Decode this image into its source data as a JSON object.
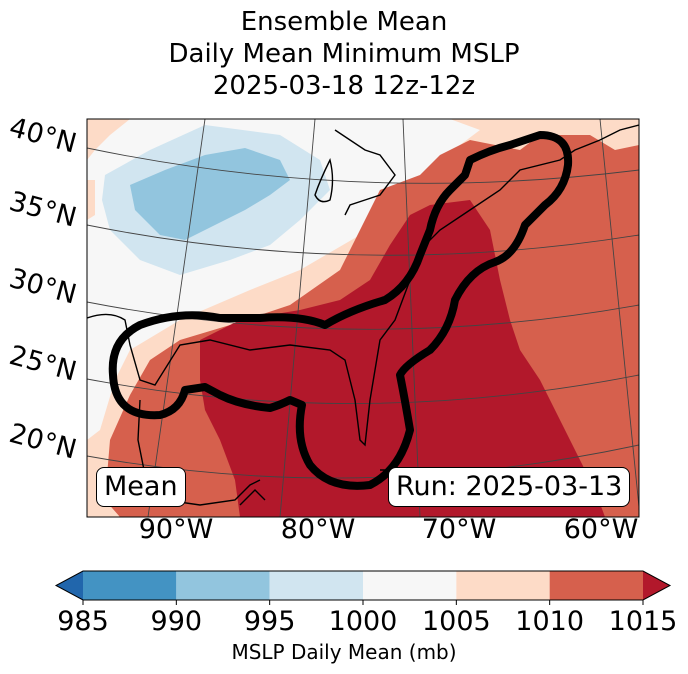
{
  "title": {
    "line1": "Ensemble Mean",
    "line2": "Daily Mean Minimum MSLP",
    "line3": "2025-03-18 12z-12z"
  },
  "map": {
    "lat_labels": [
      "40°N",
      "35°N",
      "30°N",
      "25°N",
      "20°N"
    ],
    "lon_labels": [
      "90°W",
      "80°W",
      "70°W",
      "60°W"
    ],
    "mean_label": "Mean",
    "run_label": "Run: 2025-03-13",
    "field_colors": {
      "lt_990": "#4393c3",
      "990_995": "#92c5de",
      "995_1000": "#d1e5f0",
      "1000_1005": "#f7f7f7",
      "1005_1010": "#fddbc7",
      "1010_1015": "#d6604d",
      "gt_1015": "#b2182b"
    },
    "contour_color": "#000000"
  },
  "colorbar": {
    "ticks": [
      "985",
      "990",
      "995",
      "1000",
      "1005",
      "1010",
      "1015"
    ],
    "label": "MSLP Daily Mean (mb)",
    "under_color": "#2166ac",
    "over_color": "#b2182b",
    "bins": [
      {
        "from": 985,
        "to": 990,
        "color": "#4393c3"
      },
      {
        "from": 990,
        "to": 995,
        "color": "#92c5de"
      },
      {
        "from": 995,
        "to": 1000,
        "color": "#d1e5f0"
      },
      {
        "from": 1000,
        "to": 1005,
        "color": "#f7f7f7"
      },
      {
        "from": 1005,
        "to": 1010,
        "color": "#fddbc7"
      },
      {
        "from": 1010,
        "to": 1015,
        "color": "#d6604d"
      }
    ]
  }
}
